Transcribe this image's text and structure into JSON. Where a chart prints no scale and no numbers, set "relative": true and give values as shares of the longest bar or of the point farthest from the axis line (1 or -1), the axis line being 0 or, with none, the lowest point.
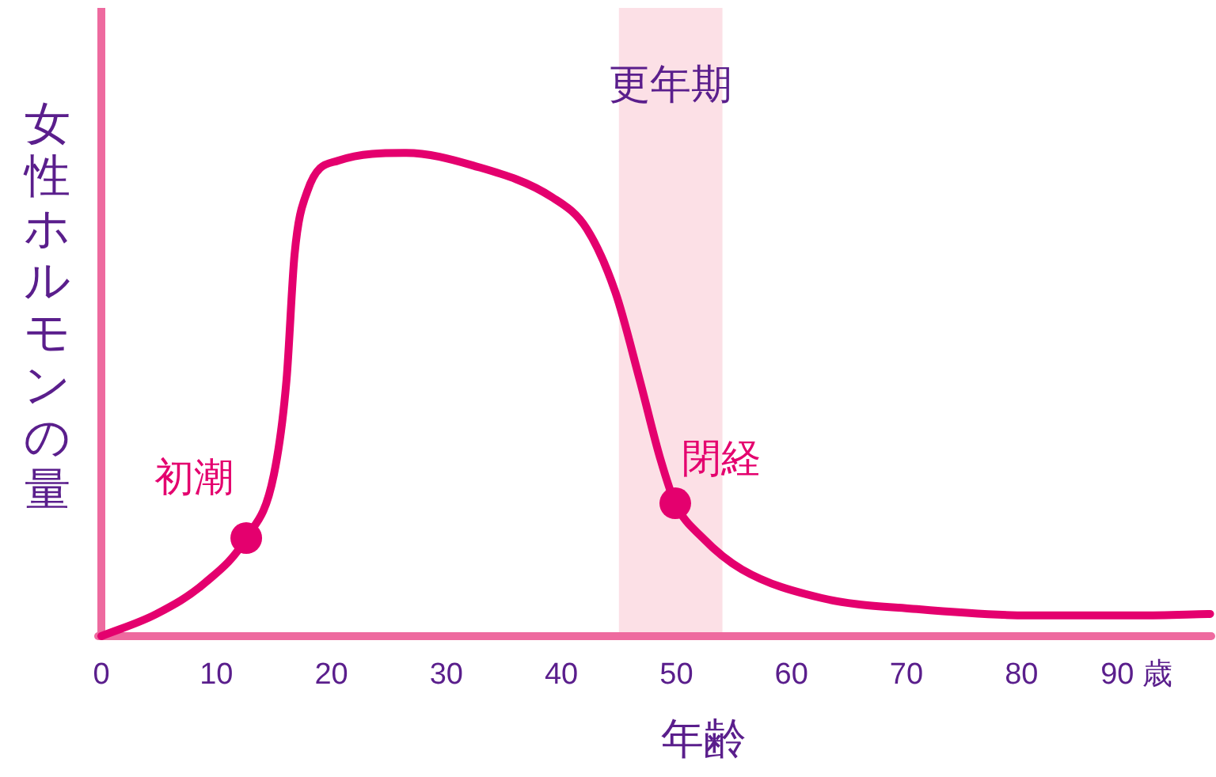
{
  "chart_data": {
    "type": "line",
    "relative": true,
    "xlabel": "年齢",
    "ylabel": "女性ホルモンの量",
    "tick_labels": "x",
    "grid": false,
    "xlim": [
      0,
      96.5
    ],
    "xticks": [
      0,
      10,
      20,
      30,
      40,
      50,
      60,
      70,
      80,
      {
        "value": 90,
        "label": "90 歳"
      }
    ],
    "bands": [
      {
        "axis": "x",
        "from": 45,
        "to": 54,
        "label": "更年期",
        "color": "#fce0e6"
      }
    ],
    "series": [
      {
        "color": "#e4006e",
        "x": [
          0,
          4.8,
          9,
          12.6,
          15,
          16.1,
          16.8,
          17.9,
          20.6,
          26.5,
          32.3,
          39.2,
          42.2,
          44.7,
          46.8,
          48.6,
          49.9,
          52.3,
          55.7,
          62.6,
          70.9,
          80.6,
          90.2,
          96.4
        ],
        "values": [
          0,
          0.046,
          0.11,
          0.203,
          0.334,
          0.53,
          0.79,
          0.92,
          0.984,
          1,
          0.974,
          0.908,
          0.843,
          0.711,
          0.531,
          0.367,
          0.275,
          0.203,
          0.138,
          0.079,
          0.056,
          0.043,
          0.043,
          0.046
        ]
      },
      {
        "type": "scatter",
        "marker": "circle",
        "color": "#e4006e",
        "x": [
          12.6,
          49.9
        ],
        "values": [
          0.203,
          0.275
        ]
      }
    ],
    "annotations": [
      {
        "text": "初潮",
        "x": 12.6,
        "y": 0.203
      },
      {
        "text": "閉経",
        "x": 49.9,
        "y": 0.275
      }
    ]
  }
}
